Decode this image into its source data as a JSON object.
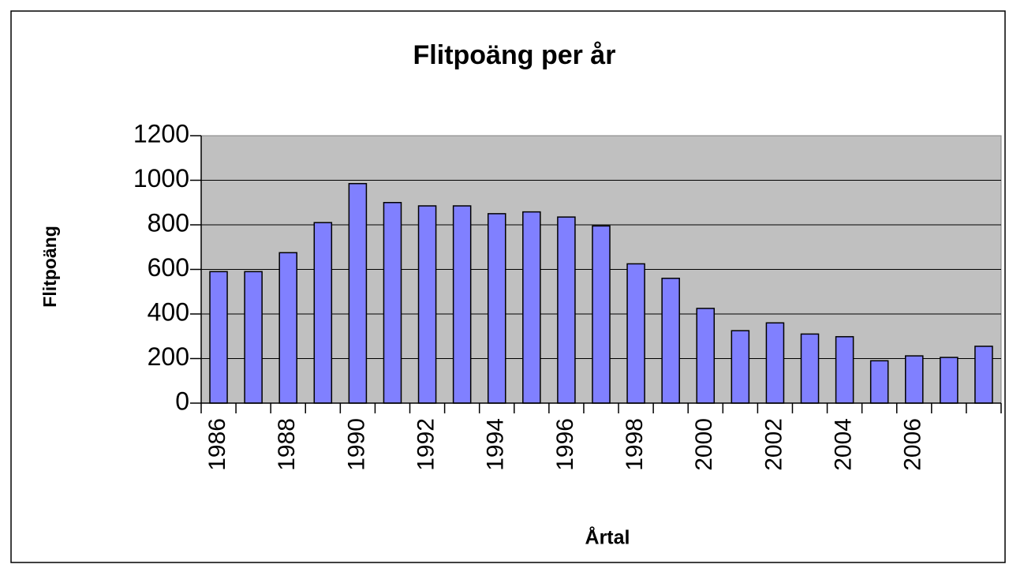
{
  "chart_data": {
    "type": "bar",
    "title": "Flitpoäng per år",
    "x_label": "Årtal",
    "y_label": "Flitpoäng",
    "categories": [
      "1986",
      null,
      "1988",
      null,
      "1990",
      null,
      "1992",
      null,
      "1994",
      null,
      "1996",
      null,
      "1998",
      null,
      "2000",
      null,
      "2002",
      null,
      "2004",
      null,
      "2006",
      null,
      null
    ],
    "values": [
      590,
      590,
      675,
      810,
      985,
      900,
      885,
      885,
      850,
      858,
      835,
      795,
      625,
      560,
      425,
      325,
      360,
      310,
      298,
      190,
      212,
      205,
      255
    ],
    "color": "#8080ff",
    "plot_background": "#c0c0c0",
    "ylim": [
      0,
      1200
    ],
    "yticks": [
      0,
      200,
      400,
      600,
      800,
      1000,
      1200
    ],
    "grid": true
  }
}
